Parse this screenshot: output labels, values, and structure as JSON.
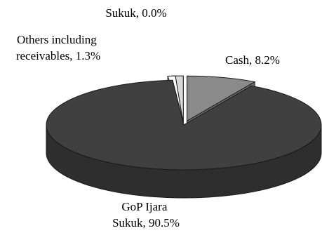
{
  "chart_data": {
    "type": "pie",
    "style": "3d-exploded",
    "legend": "none",
    "slices": [
      {
        "label_lines": [
          "Cash, 8.2%"
        ],
        "value": 8.2,
        "color": "#8a8a8a"
      },
      {
        "label_lines": [
          "GoP Ijara",
          "Sukuk, 90.5%"
        ],
        "value": 90.5,
        "color": "#404040"
      },
      {
        "label_lines": [
          "Sukuk, 0.0%"
        ],
        "value": 0.0,
        "color": "#ffffff"
      },
      {
        "label_lines": [
          "Others including",
          "receivables, 1.3%"
        ],
        "value": 1.3,
        "color": "#d9d9d9"
      }
    ]
  }
}
